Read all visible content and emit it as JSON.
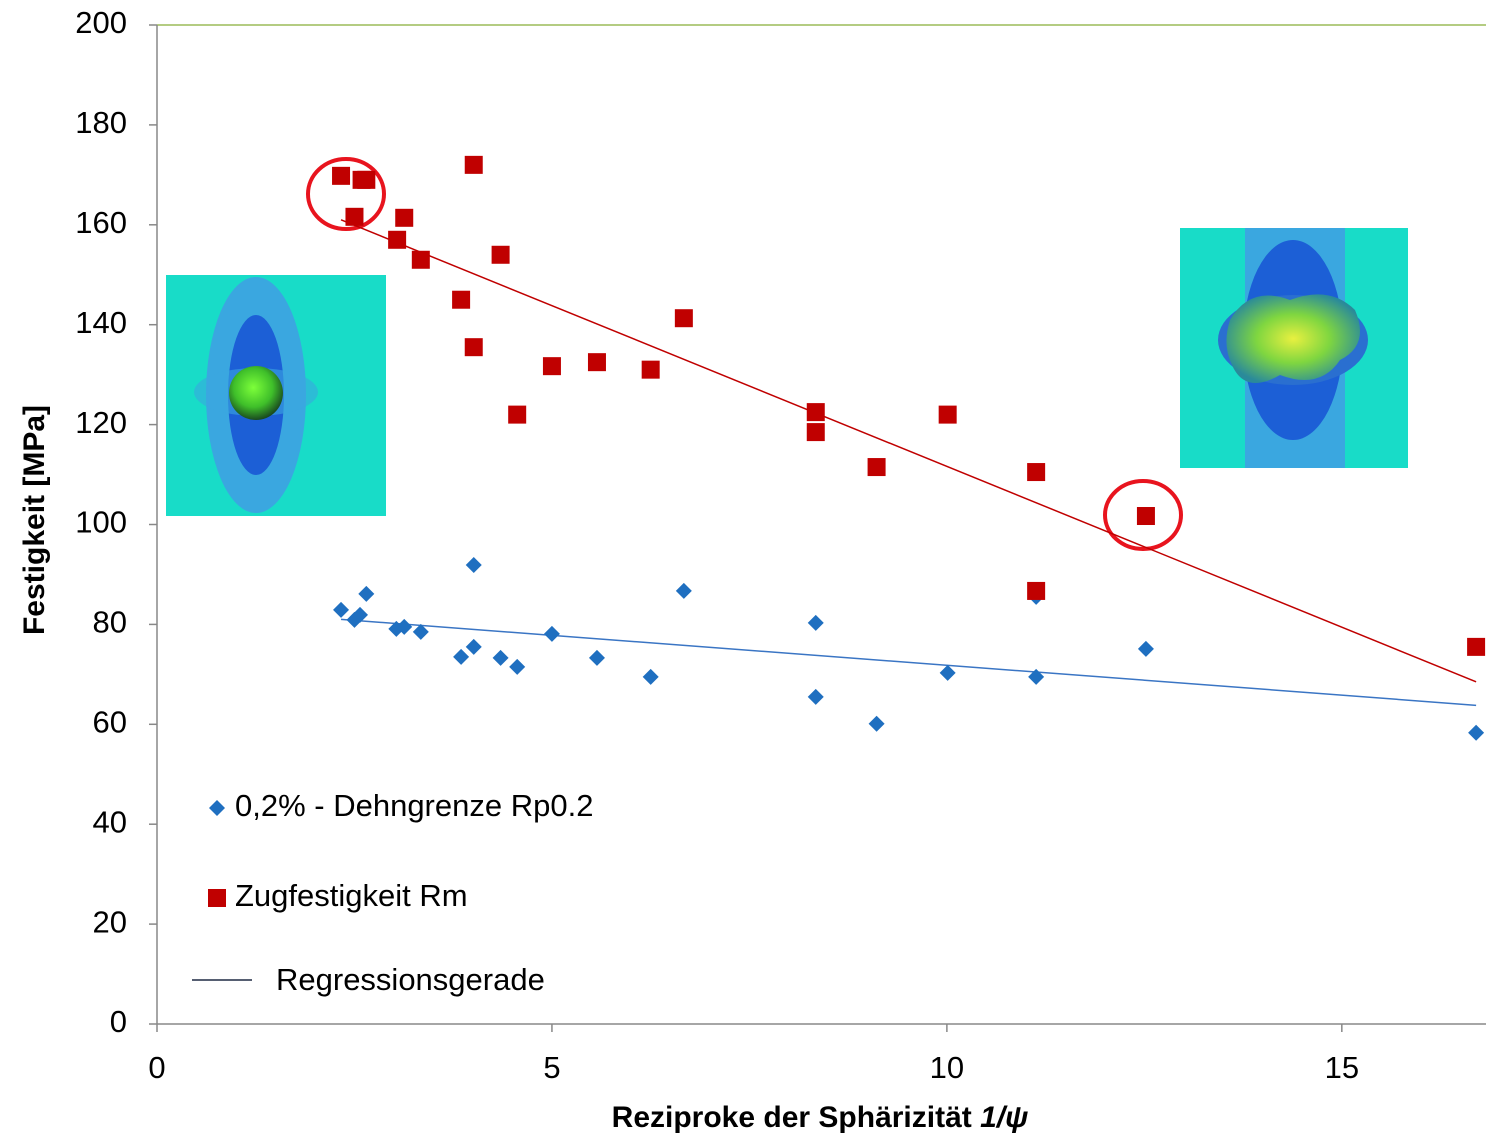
{
  "chart_data": {
    "type": "scatter",
    "x_label": "Reziproke der Sphärizität",
    "x_label_symbol": "1/ψ",
    "y_label": "Festigkeit [MPa]",
    "xlim": [
      0,
      16.8
    ],
    "ylim": [
      0,
      200
    ],
    "xticks": [
      0,
      5,
      10,
      15
    ],
    "yticks": [
      0,
      20,
      40,
      60,
      80,
      100,
      120,
      140,
      160,
      180,
      200
    ],
    "series": [
      {
        "name": "0,2% - Dehngrenze Rp0.2",
        "color": "#1f6fc0",
        "marker": "diamond",
        "x": [
          2.33,
          2.5,
          2.57,
          2.65,
          3.03,
          3.13,
          3.34,
          3.85,
          4.01,
          4.01,
          4.35,
          4.56,
          5.0,
          5.57,
          6.25,
          6.67,
          8.34,
          8.34,
          9.11,
          10.01,
          11.13,
          11.13,
          12.52,
          16.7
        ],
        "values": [
          82.9,
          80.9,
          81.9,
          86.1,
          79.1,
          79.5,
          78.5,
          73.5,
          91.9,
          75.5,
          73.3,
          71.5,
          78.1,
          73.3,
          69.5,
          86.7,
          80.3,
          65.5,
          60.1,
          70.3,
          69.5,
          85.5,
          75.1,
          58.3
        ],
        "fit": {
          "color": "#3a75c4",
          "x": [
            2.33,
            16.7
          ],
          "values": [
            81,
            63.8
          ]
        }
      },
      {
        "name": "Zugfestigkeit Rm",
        "color": "#c00000",
        "marker": "square",
        "x": [
          2.33,
          2.59,
          2.65,
          2.5,
          3.04,
          3.13,
          3.34,
          3.85,
          4.01,
          4.01,
          4.35,
          4.56,
          5.0,
          5.57,
          6.25,
          6.67,
          8.34,
          8.34,
          9.11,
          10.01,
          11.13,
          12.52,
          11.13,
          16.7
        ],
        "values": [
          169.8,
          169,
          169,
          161.6,
          157,
          161.4,
          153,
          145,
          172,
          135.5,
          154,
          122,
          131.7,
          132.5,
          131,
          141.3,
          122.5,
          118.5,
          111.5,
          122,
          110.5,
          101.7,
          86.7,
          75.5
        ],
        "fit": {
          "color": "#c00000",
          "x": [
            2.33,
            16.7
          ],
          "values": [
            161,
            68.5
          ]
        }
      }
    ],
    "fit_legend": {
      "name": "Regressionsgerade",
      "color": "#1f2a44"
    }
  }
}
